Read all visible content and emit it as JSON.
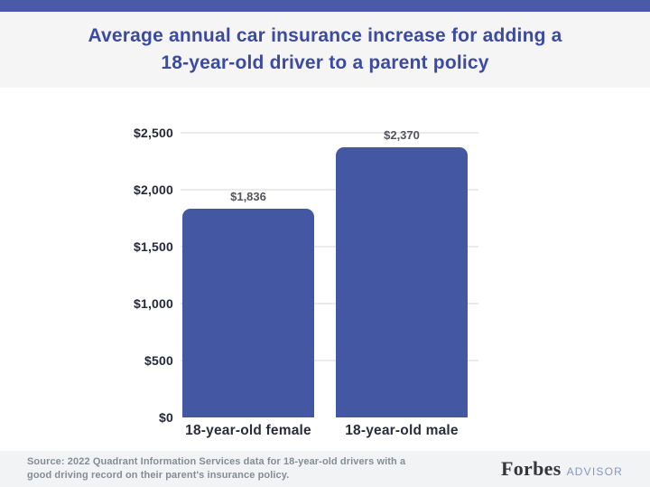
{
  "header": {
    "title_lines": [
      "Average annual car insurance increase for adding a",
      "18-year-old driver to a parent policy"
    ]
  },
  "chart_data": {
    "type": "bar",
    "title": "Average annual car insurance increase for adding a 18-year-old driver to a parent policy",
    "categories": [
      "18-year-old female",
      "18-year-old male"
    ],
    "values": [
      1836,
      2370
    ],
    "value_labels": [
      "$1,836",
      "$2,370"
    ],
    "xlabel": "",
    "ylabel": "",
    "ylim": [
      0,
      2500
    ],
    "yticks": [
      0,
      500,
      1000,
      1500,
      2000,
      2500
    ],
    "ytick_labels": [
      "$0",
      "$500",
      "$1,000",
      "$1,500",
      "$2,000",
      "$2,500"
    ],
    "grid": true,
    "legend": "none",
    "bar_color": "#4457a3",
    "accent_stripe_color": "#4a59a8",
    "title_color": "#3c4ba0"
  },
  "footer": {
    "source_lines": [
      "Source: 2022 Quadrant Information Services data for 18-year-old drivers with a",
      "good driving record on their parent's insurance policy."
    ],
    "logo": {
      "forbes": "Forbes",
      "advisor": "ADVISOR"
    }
  }
}
